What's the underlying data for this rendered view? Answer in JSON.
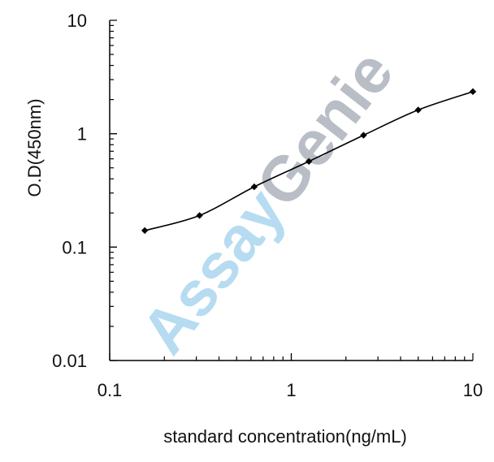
{
  "chart_data": {
    "type": "line",
    "title": "",
    "xlabel": "standard concentration(ng/mL)",
    "ylabel": "O.D(450nm)",
    "xscale": "log",
    "yscale": "log",
    "xlim": [
      0.1,
      10
    ],
    "ylim": [
      0.01,
      10
    ],
    "x_ticks": [
      {
        "value": 0.1,
        "label": "0.1"
      },
      {
        "value": 1,
        "label": "1"
      },
      {
        "value": 10,
        "label": "10"
      }
    ],
    "y_ticks": [
      {
        "value": 0.01,
        "label": "0.01"
      },
      {
        "value": 0.1,
        "label": "0.1"
      },
      {
        "value": 1,
        "label": "1"
      },
      {
        "value": 10,
        "label": "10"
      }
    ],
    "grid": false,
    "legend": "none",
    "series": [
      {
        "x": [
          0.156,
          0.3125,
          0.625,
          1.25,
          2.5,
          5,
          10
        ],
        "y": [
          0.14,
          0.19,
          0.34,
          0.57,
          0.97,
          1.62,
          2.35
        ],
        "marker": "diamond",
        "color": "#000000"
      }
    ],
    "watermark": {
      "part1": "Assay",
      "part2": "Genie",
      "color1": "#b7dcf1",
      "color2": "#b9bec6"
    }
  }
}
